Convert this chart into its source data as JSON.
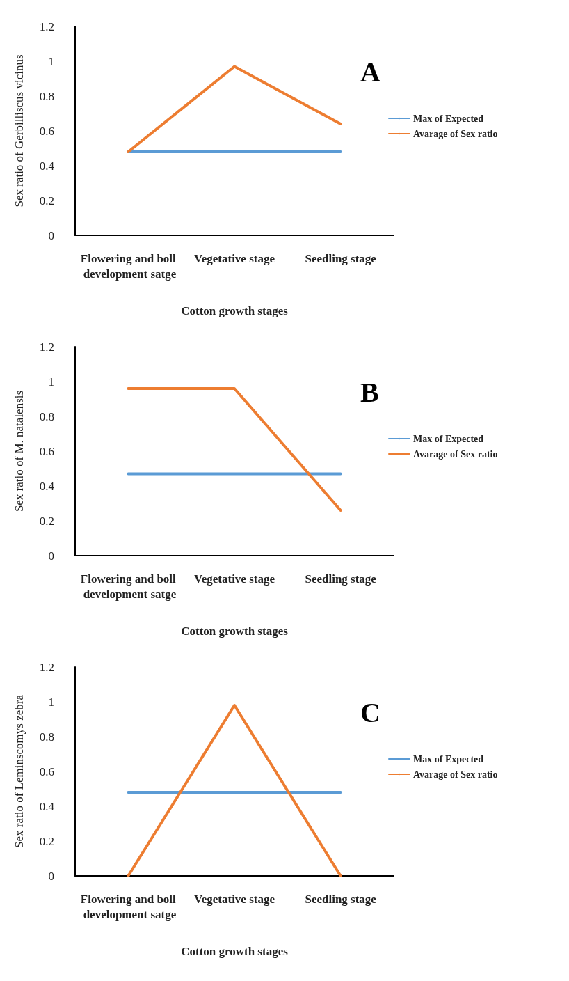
{
  "chart_data": [
    {
      "type": "line",
      "annotations": [
        "A"
      ],
      "xlabel": "Cotton growth stages",
      "ylabel": "Sex ratio of Gerbilliscus vicinus",
      "categories": [
        "Flowering and boll development satge",
        "Vegetative stage",
        "Seedling stage"
      ],
      "series": [
        {
          "name": "Max of Expected",
          "color": "#5b9bd5",
          "values": [
            0.48,
            0.48,
            0.48
          ]
        },
        {
          "name": "Avarage of Sex ratio",
          "color": "#ed7d31",
          "values": [
            0.48,
            0.97,
            0.64
          ]
        }
      ],
      "ylim": [
        0,
        1.2
      ],
      "yticks": [
        0,
        0.2,
        0.4,
        0.6,
        0.8,
        1,
        1.2
      ],
      "grid": false,
      "legend": "right",
      "marker": "none",
      "line_style": "solid"
    },
    {
      "type": "line",
      "annotations": [
        "B"
      ],
      "xlabel": "Cotton growth stages",
      "ylabel": "Sex ratio of M. natalensis",
      "categories": [
        "Flowering and boll development satge",
        "Vegetative stage",
        "Seedling stage"
      ],
      "series": [
        {
          "name": "Max of Expected",
          "color": "#5b9bd5",
          "values": [
            0.47,
            0.47,
            0.47
          ]
        },
        {
          "name": "Avarage of Sex ratio",
          "color": "#ed7d31",
          "values": [
            0.96,
            0.96,
            0.26
          ]
        }
      ],
      "ylim": [
        0,
        1.2
      ],
      "yticks": [
        0,
        0.2,
        0.4,
        0.6,
        0.8,
        1,
        1.2
      ],
      "grid": false,
      "legend": "right",
      "marker": "none",
      "line_style": "solid"
    },
    {
      "type": "line",
      "annotations": [
        "C"
      ],
      "xlabel": "Cotton growth stages",
      "ylabel": "Sex ratio of Leminscomys zebra",
      "categories": [
        "Flowering and boll development satge",
        "Vegetative stage",
        "Seedling stage"
      ],
      "series": [
        {
          "name": "Max of Expected",
          "color": "#5b9bd5",
          "values": [
            0.48,
            0.48,
            0.48
          ]
        },
        {
          "name": "Avarage of Sex ratio",
          "color": "#ed7d31",
          "values": [
            0,
            0.98,
            0
          ]
        }
      ],
      "ylim": [
        0,
        1.2
      ],
      "yticks": [
        0,
        0.2,
        0.4,
        0.6,
        0.8,
        1,
        1.2
      ],
      "grid": false,
      "legend": "right",
      "marker": "none",
      "line_style": "solid"
    }
  ]
}
